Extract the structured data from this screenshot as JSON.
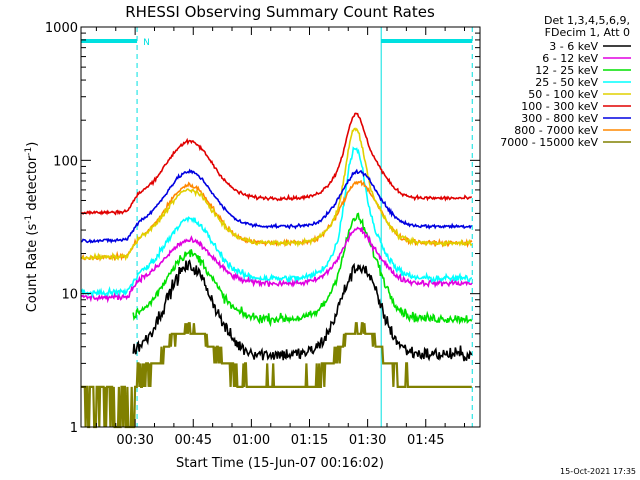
{
  "chart_data": {
    "type": "line",
    "title": "RHESSI Observing Summary Count Rates",
    "xlabel": "Start Time (15-Jun-07 00:16:02)",
    "ylabel_main": "Count Rate (s",
    "ylabel_sup1": "-1",
    "ylabel_mid": " detector",
    "ylabel_sup2": "-1",
    "ylabel_end": ")",
    "yscale": "log",
    "ylim": [
      1,
      1000
    ],
    "xlim_minutes": [
      16.03,
      119
    ],
    "x_ticks": [
      {
        "label": "00:30",
        "minutes": 30
      },
      {
        "label": "00:45",
        "minutes": 45
      },
      {
        "label": "01:00",
        "minutes": 60
      },
      {
        "label": "01:15",
        "minutes": 75
      },
      {
        "label": "01:30",
        "minutes": 90
      },
      {
        "label": "01:45",
        "minutes": 105
      }
    ],
    "y_ticks": [
      {
        "label": "1",
        "value": 1
      },
      {
        "label": "10",
        "value": 10
      },
      {
        "label": "100",
        "value": 100
      },
      {
        "label": "1000",
        "value": 1000
      }
    ],
    "legend_header": [
      "Det 1,3,4,5,6,9,",
      "FDecim 1, Att 0"
    ],
    "night_marker": "N",
    "saa_intervals": [
      [
        16.03,
        30.5
      ],
      [
        93.5,
        117
      ]
    ],
    "night_boundaries": [
      30.5,
      117
    ],
    "timestamp": "15-Oct-2021 17:35",
    "series": [
      {
        "name": "3 - 6 keV",
        "color": "#000000",
        "base": 3.5,
        "peak1": 16,
        "peak2": 16,
        "flare": 0,
        "start": 29.5,
        "noise": 0.12
      },
      {
        "name": "6 - 12 keV",
        "color": "#e000e0",
        "base": 12,
        "peak1": 25,
        "peak2": 27,
        "flare": 4,
        "start": 16.03,
        "noise": 0.05
      },
      {
        "name": "12 - 25 keV",
        "color": "#00e000",
        "base": 6.5,
        "peak1": 20,
        "peak2": 28,
        "flare": 10,
        "start": 29.5,
        "noise": 0.08
      },
      {
        "name": "25 - 50 keV",
        "color": "#00ffff",
        "base": 13,
        "peak1": 36,
        "peak2": 40,
        "flare": 85,
        "start": 16.03,
        "noise": 0.06
      },
      {
        "name": "50 - 100 keV",
        "color": "#e0d000",
        "base": 24,
        "peak1": 60,
        "peak2": 65,
        "flare": 110,
        "start": 16.03,
        "noise": 0.04
      },
      {
        "name": "100 - 300 keV",
        "color": "#e00000",
        "base": 52,
        "peak1": 138,
        "peak2": 130,
        "flare": 95,
        "start": 16.03,
        "noise": 0.03
      },
      {
        "name": "300 - 800 keV",
        "color": "#0000e0",
        "base": 32,
        "peak1": 82,
        "peak2": 78,
        "flare": 5,
        "start": 16.03,
        "noise": 0.03
      },
      {
        "name": "800 - 7000 keV",
        "color": "#ff8800",
        "base": 24,
        "peak1": 65,
        "peak2": 65,
        "flare": 5,
        "start": 16.03,
        "noise": 0.04
      },
      {
        "name": "7000 - 15000 keV",
        "color": "#808000",
        "base": 2.2,
        "peak1": 5.5,
        "peak2": 5.5,
        "flare": 0,
        "start": 16.03,
        "noise": 0.18
      }
    ]
  }
}
